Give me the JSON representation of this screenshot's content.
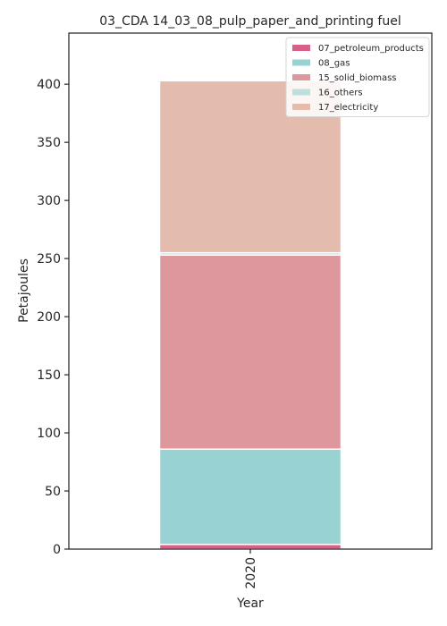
{
  "chart_data": {
    "type": "bar",
    "stacked": true,
    "title": "03_CDA 14_03_08_pulp_paper_and_printing fuel",
    "xlabel": "Year",
    "ylabel": "Petajoules",
    "categories": [
      "2020"
    ],
    "ylim": [
      0,
      444
    ],
    "yticks": [
      0,
      50,
      100,
      150,
      200,
      250,
      300,
      350,
      400
    ],
    "legend_position": "top-right",
    "grid": false,
    "series": [
      {
        "name": "07_petroleum_products",
        "values": [
          4
        ],
        "color": "#d6608a"
      },
      {
        "name": "08_gas",
        "values": [
          82
        ],
        "color": "#98d2d2"
      },
      {
        "name": "15_solid_biomass",
        "values": [
          167
        ],
        "color": "#de979d"
      },
      {
        "name": "16_others",
        "values": [
          2
        ],
        "color": "#bde0dc"
      },
      {
        "name": "17_electricity",
        "values": [
          148
        ],
        "color": "#e3bcad"
      }
    ]
  }
}
